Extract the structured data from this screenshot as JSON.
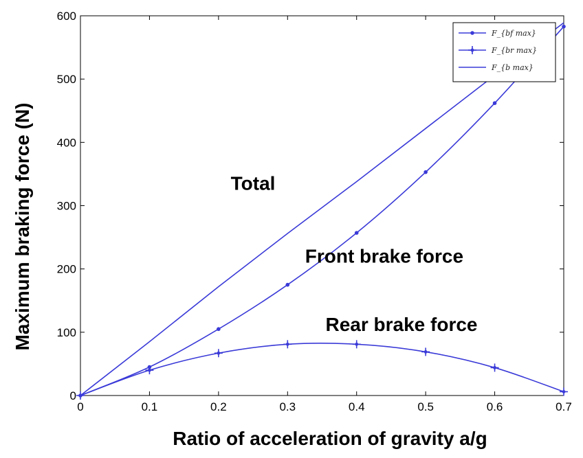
{
  "chart_data": {
    "type": "line",
    "xlabel": "Ratio of acceleration of gravity a/g",
    "ylabel": "Maximum braking force (N)",
    "xlim": [
      0,
      0.7
    ],
    "ylim": [
      0,
      600
    ],
    "x_ticks": [
      "0",
      "0.1",
      "0.2",
      "0.3",
      "0.4",
      "0.5",
      "0.6",
      "0.7"
    ],
    "y_ticks": [
      "0",
      "100",
      "200",
      "300",
      "400",
      "500",
      "600"
    ],
    "grid": false,
    "legend_position": "top-right",
    "line_color": "#3a3ad8",
    "x": [
      0,
      0.1,
      0.2,
      0.3,
      0.4,
      0.5,
      0.6,
      0.7
    ],
    "series": [
      {
        "name": "F_{bf max}",
        "marker": "dot",
        "values": [
          0,
          45,
          105,
          175,
          257,
          353,
          462,
          583
        ]
      },
      {
        "name": "F_{br max}",
        "marker": "plus",
        "values": [
          0,
          40,
          67,
          81,
          81,
          69,
          44,
          6
        ]
      },
      {
        "name": "F_{b max}",
        "marker": "none",
        "values": [
          0,
          85,
          172,
          256,
          338,
          422,
          506,
          589
        ]
      }
    ],
    "annotations": [
      {
        "text": "Total",
        "x": 0.25,
        "y": 325
      },
      {
        "text": "Front brake force",
        "x": 0.44,
        "y": 210
      },
      {
        "text": "Rear brake force",
        "x": 0.465,
        "y": 102
      }
    ]
  }
}
